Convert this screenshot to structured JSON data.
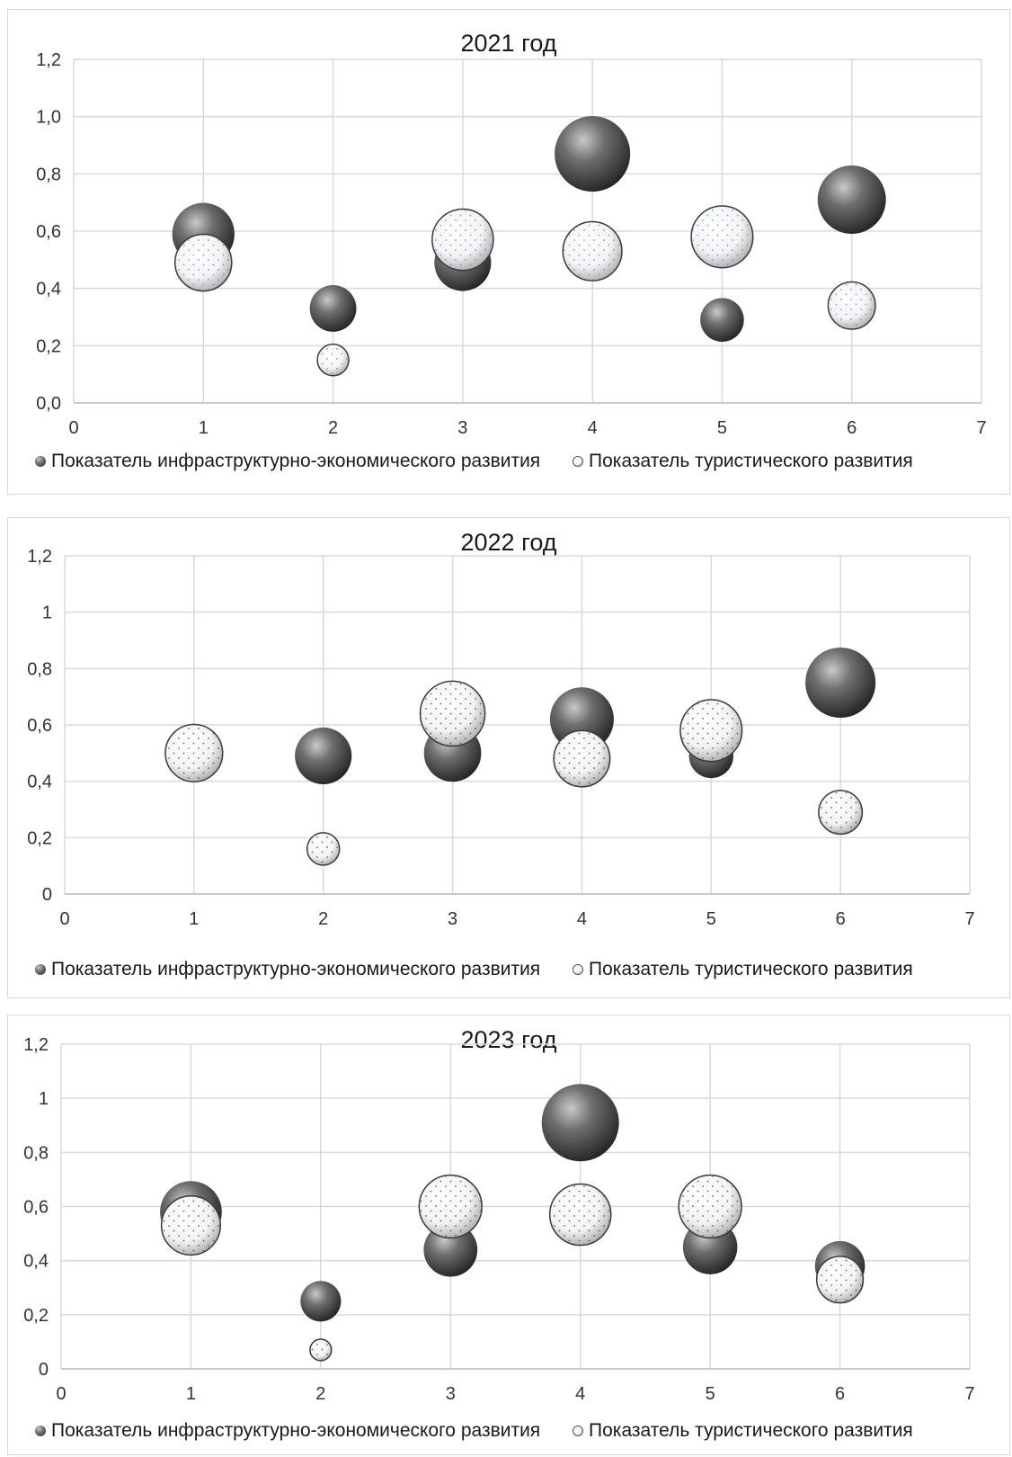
{
  "chart_data": [
    {
      "type": "bubble",
      "title": "2021 год",
      "xlim": [
        0,
        7
      ],
      "ylim": [
        0,
        1.2
      ],
      "x_ticks": [
        "0",
        "1",
        "2",
        "3",
        "4",
        "5",
        "6",
        "7"
      ],
      "y_ticks": [
        "0,0",
        "0,2",
        "0,4",
        "0,6",
        "0,8",
        "1,0",
        "1,2"
      ],
      "grid": true,
      "legend_position": "bottom",
      "series": [
        {
          "name": "Показатель инфраструктурно-экономического развития",
          "style": "dark",
          "points": [
            {
              "x": 1,
              "y": 0.59,
              "size": 0.59
            },
            {
              "x": 2,
              "y": 0.33,
              "size": 0.33
            },
            {
              "x": 3,
              "y": 0.49,
              "size": 0.49
            },
            {
              "x": 4,
              "y": 0.87,
              "size": 0.87
            },
            {
              "x": 5,
              "y": 0.29,
              "size": 0.29
            },
            {
              "x": 6,
              "y": 0.71,
              "size": 0.71
            }
          ]
        },
        {
          "name": "Показатель туристического развития",
          "style": "light",
          "points": [
            {
              "x": 1,
              "y": 0.49,
              "size": 0.49
            },
            {
              "x": 2,
              "y": 0.15,
              "size": 0.15
            },
            {
              "x": 3,
              "y": 0.57,
              "size": 0.57
            },
            {
              "x": 4,
              "y": 0.53,
              "size": 0.53
            },
            {
              "x": 5,
              "y": 0.58,
              "size": 0.58
            },
            {
              "x": 6,
              "y": 0.34,
              "size": 0.34
            }
          ]
        }
      ]
    },
    {
      "type": "bubble",
      "title": "2022 год",
      "xlim": [
        0,
        7
      ],
      "ylim": [
        0,
        1.2
      ],
      "x_ticks": [
        "0",
        "1",
        "2",
        "3",
        "4",
        "5",
        "6",
        "7"
      ],
      "y_ticks": [
        "0",
        "0,2",
        "0,4",
        "0,6",
        "0,8",
        "1",
        "1,2"
      ],
      "grid": true,
      "legend_position": "bottom",
      "series": [
        {
          "name": "Показатель инфраструктурно-экономического развития",
          "style": "dark",
          "points": [
            {
              "x": 1,
              "y": 0.5,
              "size": 0.5
            },
            {
              "x": 2,
              "y": 0.49,
              "size": 0.49
            },
            {
              "x": 3,
              "y": 0.5,
              "size": 0.5
            },
            {
              "x": 4,
              "y": 0.62,
              "size": 0.62
            },
            {
              "x": 5,
              "y": 0.49,
              "size": 0.3
            },
            {
              "x": 6,
              "y": 0.75,
              "size": 0.75
            }
          ]
        },
        {
          "name": "Показатель туристического развития",
          "style": "light",
          "points": [
            {
              "x": 1,
              "y": 0.5,
              "size": 0.5
            },
            {
              "x": 2,
              "y": 0.16,
              "size": 0.16
            },
            {
              "x": 3,
              "y": 0.64,
              "size": 0.64
            },
            {
              "x": 4,
              "y": 0.48,
              "size": 0.48
            },
            {
              "x": 5,
              "y": 0.58,
              "size": 0.58
            },
            {
              "x": 6,
              "y": 0.29,
              "size": 0.29
            }
          ]
        }
      ]
    },
    {
      "type": "bubble",
      "title": "2023 год",
      "xlim": [
        0,
        7
      ],
      "ylim": [
        0,
        1.2
      ],
      "x_ticks": [
        "0",
        "1",
        "2",
        "3",
        "4",
        "5",
        "6",
        "7"
      ],
      "y_ticks": [
        "0",
        "0,2",
        "0,4",
        "0,6",
        "0,8",
        "1",
        "1,2"
      ],
      "grid": true,
      "legend_position": "bottom",
      "series": [
        {
          "name": "Показатель инфраструктурно-экономического развития",
          "style": "dark",
          "points": [
            {
              "x": 1,
              "y": 0.58,
              "size": 0.58
            },
            {
              "x": 2,
              "y": 0.25,
              "size": 0.25
            },
            {
              "x": 3,
              "y": 0.44,
              "size": 0.44
            },
            {
              "x": 4,
              "y": 0.91,
              "size": 0.91
            },
            {
              "x": 5,
              "y": 0.45,
              "size": 0.45
            },
            {
              "x": 6,
              "y": 0.38,
              "size": 0.38
            }
          ]
        },
        {
          "name": "Показатель туристического развития",
          "style": "light",
          "points": [
            {
              "x": 1,
              "y": 0.53,
              "size": 0.53
            },
            {
              "x": 2,
              "y": 0.07,
              "size": 0.07
            },
            {
              "x": 3,
              "y": 0.6,
              "size": 0.6
            },
            {
              "x": 4,
              "y": 0.57,
              "size": 0.57
            },
            {
              "x": 5,
              "y": 0.6,
              "size": 0.6
            },
            {
              "x": 6,
              "y": 0.33,
              "size": 0.33
            }
          ]
        }
      ]
    }
  ],
  "colors": {
    "grid": "#d9d9d9",
    "dark_bubble": "#5a5a5a",
    "light_bubble": "#f5f5f5",
    "dots_blue": "#4a90d9",
    "dots_gray": "#444444"
  }
}
